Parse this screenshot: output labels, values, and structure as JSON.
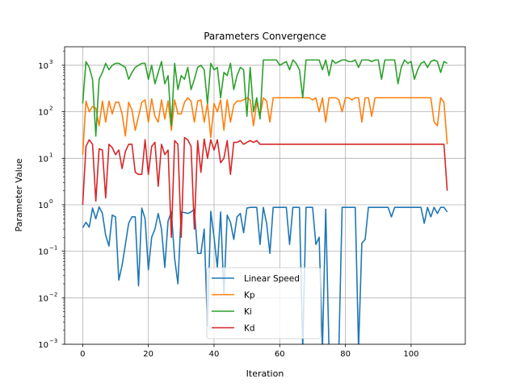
{
  "chart_data": {
    "type": "line",
    "title": "Parameters Convergence",
    "xlabel": "Iteration",
    "ylabel": "Parameter Value",
    "xlim": [
      -5.5,
      116.5
    ],
    "ylim": [
      0.001,
      2500
    ],
    "yscale": "log",
    "x_ticks": [
      0,
      20,
      40,
      60,
      80,
      100
    ],
    "x_tick_labels": [
      "0",
      "20",
      "40",
      "60",
      "80",
      "100"
    ],
    "y_ticks": [
      0.001,
      0.01,
      0.1,
      1,
      10,
      100,
      1000
    ],
    "y_tick_labels": [
      "10",
      "10",
      "10",
      "10",
      "10",
      "10",
      "10"
    ],
    "y_tick_exponents": [
      "−3",
      "−2",
      "−1",
      "0",
      "1",
      "2",
      "3"
    ],
    "grid": true,
    "legend_position": "bottom-center",
    "x": [
      0,
      1,
      2,
      3,
      4,
      5,
      6,
      7,
      8,
      9,
      10,
      11,
      12,
      13,
      14,
      15,
      16,
      17,
      18,
      19,
      20,
      21,
      22,
      23,
      24,
      25,
      26,
      27,
      28,
      29,
      30,
      31,
      32,
      33,
      34,
      35,
      36,
      37,
      38,
      39,
      40,
      41,
      42,
      43,
      44,
      45,
      46,
      47,
      48,
      49,
      50,
      51,
      52,
      53,
      54,
      55,
      56,
      57,
      58,
      59,
      60,
      61,
      62,
      63,
      64,
      65,
      66,
      67,
      68,
      69,
      70,
      71,
      72,
      73,
      74,
      75,
      76,
      77,
      78,
      79,
      80,
      81,
      82,
      83,
      84,
      85,
      86,
      87,
      88,
      89,
      90,
      91,
      92,
      93,
      94,
      95,
      96,
      97,
      98,
      99,
      100,
      101,
      102,
      103,
      104,
      105,
      106,
      107,
      108,
      109,
      110,
      111
    ],
    "series": [
      {
        "name": "Linear Speed",
        "color": "#1f77b4",
        "values": [
          0.32,
          0.42,
          0.33,
          0.85,
          0.5,
          0.9,
          0.65,
          0.22,
          0.13,
          0.6,
          0.55,
          0.024,
          0.05,
          0.14,
          0.4,
          0.55,
          0.55,
          0.018,
          0.85,
          0.5,
          0.04,
          0.2,
          0.3,
          0.65,
          0.3,
          0.045,
          0.45,
          0.7,
          0.07,
          0.02,
          0.7,
          0.68,
          0.65,
          0.7,
          0.8,
          0.09,
          0.09,
          0.3,
          0.0025,
          0.72,
          0.2,
          0.045,
          0.7,
          0.012,
          0.6,
          0.42,
          0.18,
          0.55,
          0.65,
          0.25,
          0.85,
          0.88,
          0.88,
          0.88,
          0.14,
          0.88,
          0.4,
          0.09,
          0.88,
          0.88,
          0.88,
          0.88,
          0.88,
          0.14,
          0.88,
          0.88,
          0.88,
          0.0008,
          0.88,
          0.88,
          0.88,
          0.14,
          0.2,
          0.0008,
          0.8,
          0.0008,
          0.0008,
          0.0008,
          0.0008,
          0.88,
          0.88,
          0.88,
          0.88,
          0.88,
          0.0008,
          0.15,
          0.18,
          0.88,
          0.88,
          0.88,
          0.88,
          0.88,
          0.88,
          0.88,
          0.55,
          0.88,
          0.88,
          0.88,
          0.88,
          0.88,
          0.88,
          0.88,
          0.88,
          0.88,
          0.4,
          0.88,
          0.55,
          0.88,
          0.65,
          0.88,
          0.88,
          0.7
        ]
      },
      {
        "name": "Kp",
        "color": "#ff7f0e",
        "values": [
          12,
          170,
          100,
          130,
          120,
          50,
          170,
          60,
          170,
          90,
          160,
          160,
          90,
          30,
          160,
          110,
          40,
          80,
          160,
          180,
          60,
          190,
          80,
          60,
          180,
          70,
          170,
          40,
          180,
          90,
          90,
          160,
          200,
          170,
          60,
          170,
          180,
          60,
          150,
          28,
          150,
          100,
          180,
          40,
          180,
          60,
          140,
          170,
          170,
          180,
          200,
          180,
          50,
          160,
          80,
          200,
          170,
          60,
          200,
          200,
          200,
          200,
          200,
          200,
          200,
          200,
          200,
          200,
          200,
          200,
          180,
          200,
          100,
          200,
          60,
          200,
          200,
          200,
          180,
          100,
          200,
          200,
          180,
          200,
          200,
          60,
          200,
          200,
          80,
          200,
          200,
          200,
          200,
          200,
          200,
          200,
          200,
          200,
          200,
          200,
          200,
          200,
          200,
          200,
          200,
          200,
          200,
          60,
          50,
          200,
          160,
          20
        ]
      },
      {
        "name": "Ki",
        "color": "#2ca02c",
        "values": [
          150,
          1200,
          900,
          500,
          30,
          500,
          700,
          1100,
          800,
          1000,
          1100,
          1100,
          1000,
          900,
          500,
          700,
          900,
          1000,
          1100,
          1100,
          500,
          1000,
          400,
          700,
          1200,
          400,
          600,
          50,
          1100,
          300,
          600,
          500,
          900,
          300,
          500,
          900,
          1000,
          800,
          150,
          1100,
          800,
          900,
          200,
          700,
          600,
          1100,
          300,
          600,
          900,
          800,
          80,
          900,
          100,
          200,
          70,
          1300,
          1300,
          1300,
          1300,
          1300,
          1000,
          1100,
          1200,
          800,
          1300,
          1100,
          800,
          200,
          1300,
          1300,
          1300,
          1300,
          1300,
          800,
          1300,
          600,
          1300,
          1100,
          1200,
          1300,
          1300,
          1200,
          1200,
          1300,
          900,
          1300,
          1300,
          1300,
          1200,
          1300,
          1300,
          500,
          1300,
          1300,
          1300,
          1300,
          400,
          900,
          1300,
          1100,
          1200,
          500,
          800,
          1100,
          1200,
          900,
          1200,
          1300,
          1200,
          700,
          1200,
          1100
        ]
      },
      {
        "name": "Kd",
        "color": "#d62728",
        "values": [
          1,
          18,
          25,
          20,
          1.2,
          16,
          15,
          1.4,
          20,
          17,
          12,
          15,
          6,
          14,
          20,
          20,
          5,
          4.5,
          4.5,
          25,
          4.5,
          18,
          22,
          2.5,
          20,
          12,
          15,
          0.2,
          24,
          20,
          0.2,
          28,
          25,
          18,
          0.3,
          24,
          5,
          26,
          10,
          25,
          15,
          25,
          8,
          10,
          24,
          4.5,
          22,
          22,
          24,
          20,
          22,
          24,
          22,
          24,
          20,
          20,
          20,
          20,
          20,
          20,
          20,
          20,
          20,
          20,
          20,
          20,
          20,
          20,
          20,
          20,
          20,
          20,
          20,
          20,
          20,
          20,
          20,
          20,
          20,
          20,
          20,
          20,
          20,
          20,
          20,
          20,
          20,
          20,
          20,
          20,
          20,
          20,
          20,
          20,
          20,
          20,
          20,
          20,
          20,
          20,
          20,
          20,
          20,
          20,
          20,
          20,
          20,
          20,
          20,
          20,
          20,
          2
        ]
      }
    ]
  }
}
